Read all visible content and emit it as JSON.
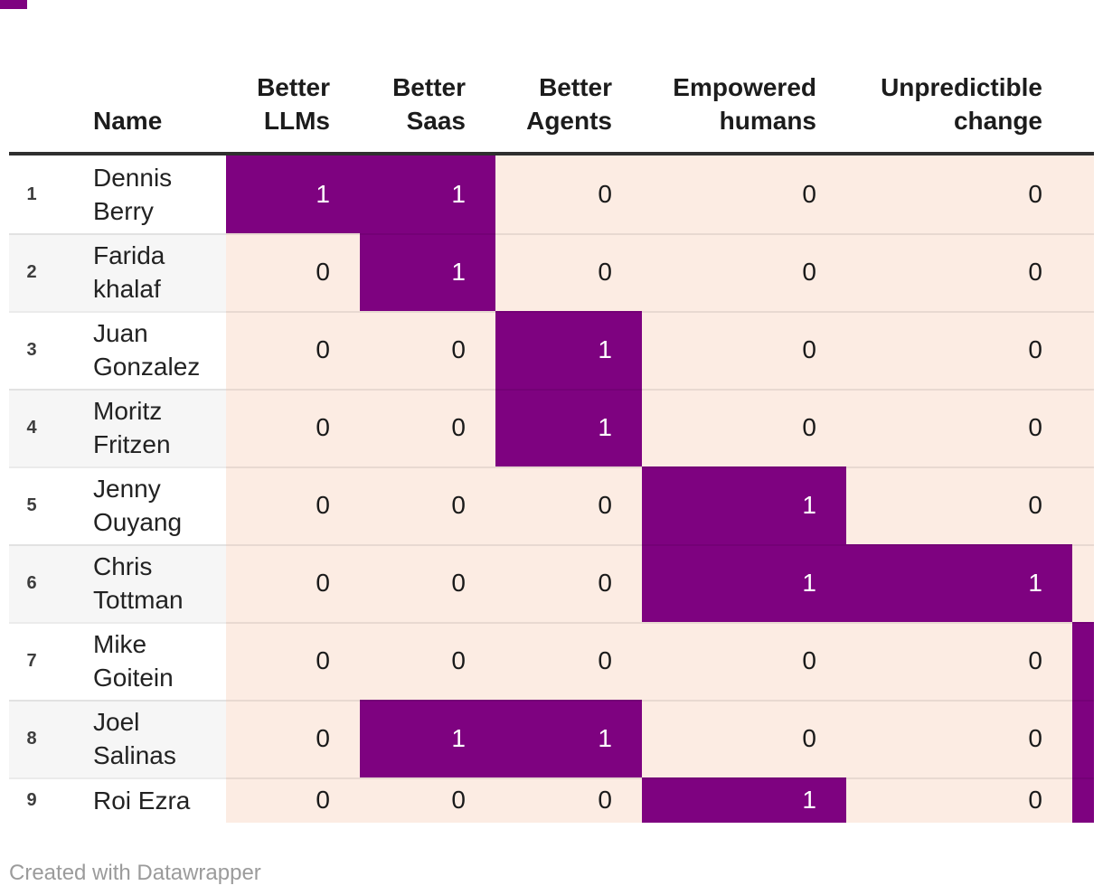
{
  "table": {
    "name_header": "Name",
    "columns": [
      "Better LLMs",
      "Better Saas",
      "Better Agents",
      "Empowered humans",
      "Unpredictible change"
    ],
    "rows": [
      {
        "index": "1",
        "name": "Dennis Berry",
        "name_lines": [
          "Dennis",
          "Berry"
        ],
        "values": [
          1,
          1,
          0,
          0,
          0
        ],
        "clipped_value": 0
      },
      {
        "index": "2",
        "name": "Farida khalaf",
        "name_lines": [
          "Farida",
          "khalaf"
        ],
        "values": [
          0,
          1,
          0,
          0,
          0
        ],
        "clipped_value": 0
      },
      {
        "index": "3",
        "name": "Juan Gonzalez",
        "name_lines": [
          "Juan",
          "Gonzalez"
        ],
        "values": [
          0,
          0,
          1,
          0,
          0
        ],
        "clipped_value": 0
      },
      {
        "index": "4",
        "name": "Moritz Fritzen",
        "name_lines": [
          "Moritz",
          "Fritzen"
        ],
        "values": [
          0,
          0,
          1,
          0,
          0
        ],
        "clipped_value": 0
      },
      {
        "index": "5",
        "name": "Jenny Ouyang",
        "name_lines": [
          "Jenny",
          "Ouyang"
        ],
        "values": [
          0,
          0,
          0,
          1,
          0
        ],
        "clipped_value": 0
      },
      {
        "index": "6",
        "name": "Chris Tottman",
        "name_lines": [
          "Chris",
          "Tottman"
        ],
        "values": [
          0,
          0,
          0,
          1,
          1
        ],
        "clipped_value": 0
      },
      {
        "index": "7",
        "name": "Mike Goitein",
        "name_lines": [
          "Mike",
          "Goitein"
        ],
        "values": [
          0,
          0,
          0,
          0,
          0
        ],
        "clipped_value": 1
      },
      {
        "index": "8",
        "name": "Joel Salinas",
        "name_lines": [
          "Joel",
          "Salinas"
        ],
        "values": [
          0,
          1,
          1,
          0,
          0
        ],
        "clipped_value": 1
      },
      {
        "index": "9",
        "name": "Roi Ezra",
        "name_lines": [
          "Roi Ezra"
        ],
        "values": [
          0,
          0,
          0,
          1,
          0
        ],
        "clipped_value": 1
      }
    ]
  },
  "footer": {
    "credit": "Created with Datawrapper"
  },
  "colors": {
    "value_1_bg": "#7e0280",
    "value_0_bg": "#fcece3",
    "value_1_text": "#ffffff",
    "value_0_text": "#1a1a1a",
    "row_alt_bg": "#f6f6f6",
    "header_rule": "#2f2f2f",
    "footer_text": "#9b9b9b",
    "corner_mark": "#7e0280"
  },
  "chart_data": {
    "type": "heatmap",
    "title": "",
    "columns": [
      "Better LLMs",
      "Better Saas",
      "Better Agents",
      "Empowered humans",
      "Unpredictible change"
    ],
    "rows": [
      "Dennis Berry",
      "Farida khalaf",
      "Juan Gonzalez",
      "Moritz Fritzen",
      "Jenny Ouyang",
      "Chris Tottman",
      "Mike Goitein",
      "Joel Salinas",
      "Roi Ezra"
    ],
    "values": [
      [
        1,
        1,
        0,
        0,
        0
      ],
      [
        0,
        1,
        0,
        0,
        0
      ],
      [
        0,
        0,
        1,
        0,
        0
      ],
      [
        0,
        0,
        1,
        0,
        0
      ],
      [
        0,
        0,
        0,
        1,
        0
      ],
      [
        0,
        0,
        0,
        1,
        1
      ],
      [
        0,
        0,
        0,
        0,
        0
      ],
      [
        0,
        1,
        1,
        0,
        0
      ],
      [
        0,
        0,
        0,
        1,
        0
      ]
    ],
    "clipped_sixth_column_values": [
      0,
      0,
      0,
      0,
      0,
      0,
      1,
      1,
      1
    ],
    "color_scale": {
      "0": "#fcece3",
      "1": "#7e0280"
    },
    "legend_position": "none",
    "grid": "row-separators"
  }
}
